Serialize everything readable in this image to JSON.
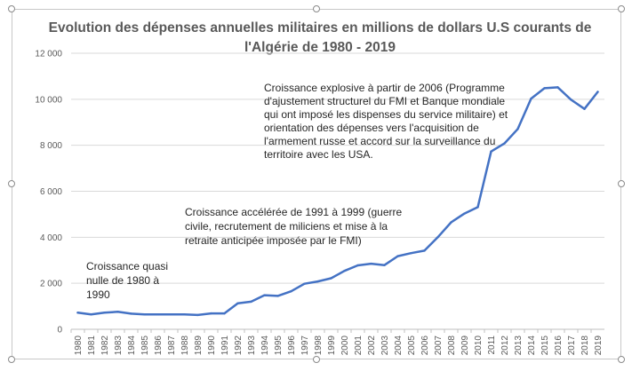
{
  "chart_data": {
    "type": "line",
    "title": "Evolution des dépenses annuelles militaires en millions de dollars U.S courants de l'Algérie de 1980 - 2019",
    "title_lines": [
      "Evolution des dépenses annuelles militaires en millions de dollars U.S courants de",
      "l'Algérie de 1980 - 2019"
    ],
    "xlabel": "",
    "ylabel": "",
    "ylim": [
      0,
      12000
    ],
    "y_ticks": [
      "0",
      "2 000",
      "4 000",
      "6 000",
      "8 000",
      "10 000",
      "12 000"
    ],
    "grid": "horizontal",
    "legend": "none",
    "line_color": "#4472c4",
    "x": [
      "1980",
      "1981",
      "1982",
      "1983",
      "1984",
      "1985",
      "1986",
      "1987",
      "1988",
      "1989",
      "1990",
      "1991",
      "1992",
      "1993",
      "1994",
      "1995",
      "1996",
      "1997",
      "1998",
      "1999",
      "2000",
      "2001",
      "2002",
      "2003",
      "2004",
      "2005",
      "2006",
      "2007",
      "2008",
      "2009",
      "2010",
      "2011",
      "2012",
      "2013",
      "2014",
      "2015",
      "2016",
      "2017",
      "2018",
      "2019"
    ],
    "values": [
      720,
      650,
      720,
      760,
      680,
      650,
      650,
      650,
      650,
      620,
      690,
      690,
      1130,
      1200,
      1480,
      1450,
      1650,
      1980,
      2080,
      2220,
      2540,
      2780,
      2850,
      2790,
      3180,
      3310,
      3420,
      4000,
      4650,
      5030,
      5310,
      7730,
      8080,
      8710,
      10030,
      10480,
      10520,
      9980,
      9580,
      10320
    ],
    "annotations": [
      {
        "lines": [
          "Croissance quasi",
          "nulle de 1980  à",
          "1990"
        ]
      },
      {
        "lines": [
          "Croissance accélérée de 1991 à 1999 (guerre",
          "civile, recrutement de miliciens et mise à la",
          "retraite anticipée imposée par le FMI)"
        ]
      },
      {
        "lines": [
          "Croissance explosive à partir de 2006 (Programme",
          "d'ajustement structurel du FMI et Banque mondiale",
          "qui ont imposé les dispenses du service militaire) et",
          "orientation des dépenses vers l'acquisition de",
          "l'armement russe et accord sur la surveillance du",
          "territoire avec les USA."
        ]
      }
    ]
  }
}
